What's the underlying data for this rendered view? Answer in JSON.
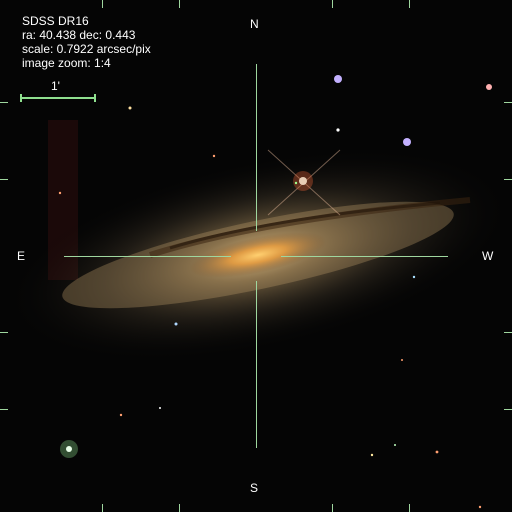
{
  "info": {
    "survey": "SDSS DR16",
    "coords": "ra: 40.438 dec: 0.443",
    "scale": "scale: 0.7922 arcsec/pix",
    "zoom": "image zoom: 1:4"
  },
  "scalebar": {
    "label": "1'"
  },
  "compass": {
    "north": "N",
    "south": "S",
    "east": "E",
    "west": "W"
  },
  "colors": {
    "overlay": "#9fd79f",
    "text": "#ffffff"
  }
}
